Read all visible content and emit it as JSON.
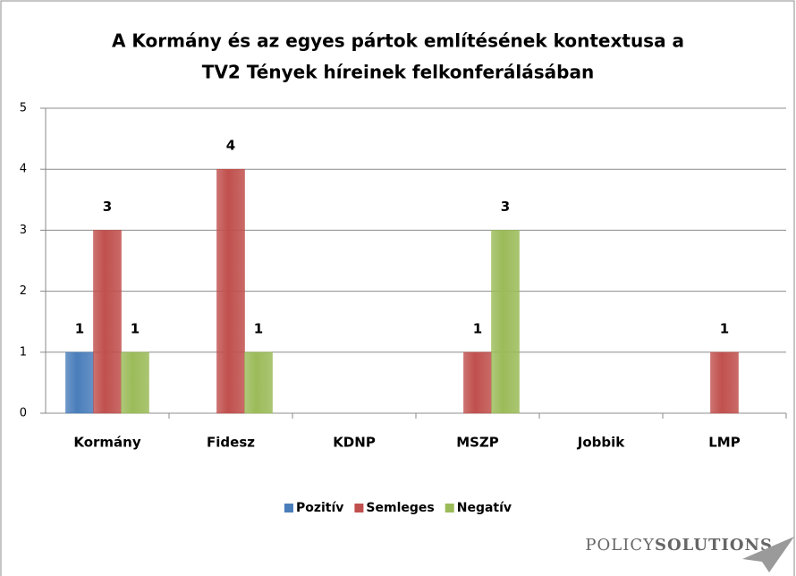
{
  "chart_data": {
    "type": "bar",
    "title": [
      "A Kormány és az egyes pártok említésének kontextusa a",
      "TV2 Tények híreinek felkonferálásában"
    ],
    "categories": [
      "Kormány",
      "Fidesz",
      "KDNP",
      "MSZP",
      "Jobbik",
      "LMP"
    ],
    "series": [
      {
        "name": "Pozitív",
        "color": "#4a7ebb",
        "values": [
          1,
          null,
          null,
          null,
          null,
          null
        ]
      },
      {
        "name": "Semleges",
        "color": "#c0504d",
        "values": [
          3,
          4,
          null,
          1,
          null,
          1
        ]
      },
      {
        "name": "Negatív",
        "color": "#9bbb59",
        "values": [
          1,
          1,
          null,
          3,
          null,
          null
        ]
      }
    ],
    "ylim": [
      0,
      5
    ],
    "yticks": [
      0,
      1,
      2,
      3,
      4,
      5
    ],
    "grid": true,
    "legend": "bottom",
    "logo": [
      "POLICY",
      "SOLUTIONS"
    ]
  }
}
